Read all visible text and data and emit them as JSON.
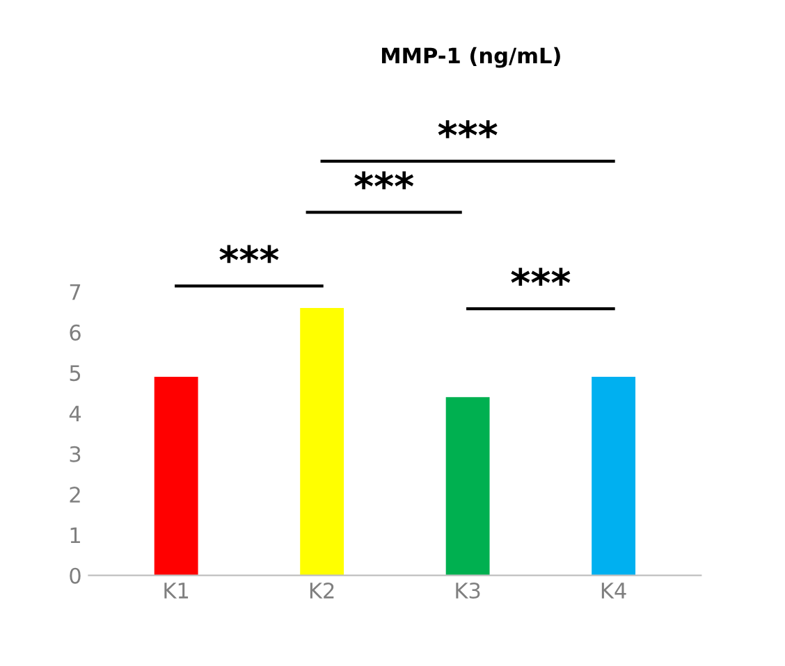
{
  "chart_data": {
    "type": "bar",
    "title": "MMP-1 (ng/mL)",
    "categories": [
      "K1",
      "K2",
      "K3",
      "K4"
    ],
    "values": [
      4.9,
      6.6,
      4.4,
      4.9
    ],
    "colors": [
      "#ff0000",
      "#ffff00",
      "#00b050",
      "#00b0f0"
    ],
    "ylim": [
      0,
      7
    ],
    "yticks": [
      0,
      1,
      2,
      3,
      4,
      5,
      6,
      7
    ],
    "grid": false,
    "legend": false,
    "annotations": [
      "***",
      "***",
      "***",
      "***"
    ]
  }
}
